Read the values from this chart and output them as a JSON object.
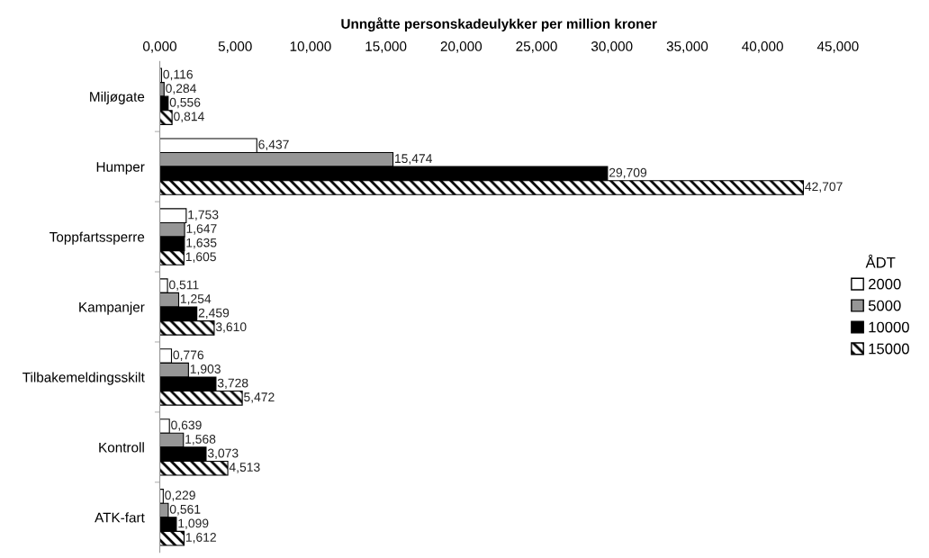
{
  "chart_data": {
    "type": "bar",
    "orientation": "horizontal",
    "xlabel": "Unngåtte personskadeulykker per million kroner",
    "legend_title": "ÅDT",
    "legend": "right",
    "grid": false,
    "categories": [
      "Miljøgate",
      "Humper",
      "Toppfartssperre",
      "Kampanjer",
      "Tilbakemeldingsskilt",
      "Kontroll",
      "ATK-fart"
    ],
    "xlim": [
      0,
      45
    ],
    "xticks": [
      {
        "value": 0,
        "label": "0,000"
      },
      {
        "value": 5,
        "label": "5,000"
      },
      {
        "value": 10,
        "label": "10,000"
      },
      {
        "value": 15,
        "label": "15,000"
      },
      {
        "value": 20,
        "label": "20,000"
      },
      {
        "value": 25,
        "label": "25,000"
      },
      {
        "value": 30,
        "label": "30,000"
      },
      {
        "value": 35,
        "label": "35,000"
      },
      {
        "value": 40,
        "label": "40,000"
      },
      {
        "value": 45,
        "label": "45,000"
      }
    ],
    "series": [
      {
        "name": "2000",
        "color": "#ffffff",
        "values": [
          0.116,
          6.437,
          1.753,
          0.511,
          0.776,
          0.639,
          0.229
        ],
        "value_labels": [
          "0,116",
          "6,437",
          "1,753",
          "0,511",
          "0,776",
          "0,639",
          "0,229"
        ]
      },
      {
        "name": "5000",
        "color": "#969696",
        "values": [
          0.284,
          15.474,
          1.647,
          1.254,
          1.903,
          1.568,
          0.561
        ],
        "value_labels": [
          "0,284",
          "15,474",
          "1,647",
          "1,254",
          "1,903",
          "1,568",
          "0,561"
        ]
      },
      {
        "name": "10000",
        "color": "#000000",
        "values": [
          0.556,
          29.709,
          1.635,
          2.459,
          3.728,
          3.073,
          1.099
        ],
        "value_labels": [
          "0,556",
          "29,709",
          "1,635",
          "2,459",
          "3,728",
          "3,073",
          "1,099"
        ]
      },
      {
        "name": "15000",
        "color": "#000000",
        "values": [
          0.814,
          42.707,
          1.605,
          3.61,
          5.472,
          4.513,
          1.612
        ],
        "value_labels": [
          "0,814",
          "42,707",
          "1,605",
          "3,610",
          "5,472",
          "4,513",
          "1,612"
        ]
      }
    ]
  }
}
